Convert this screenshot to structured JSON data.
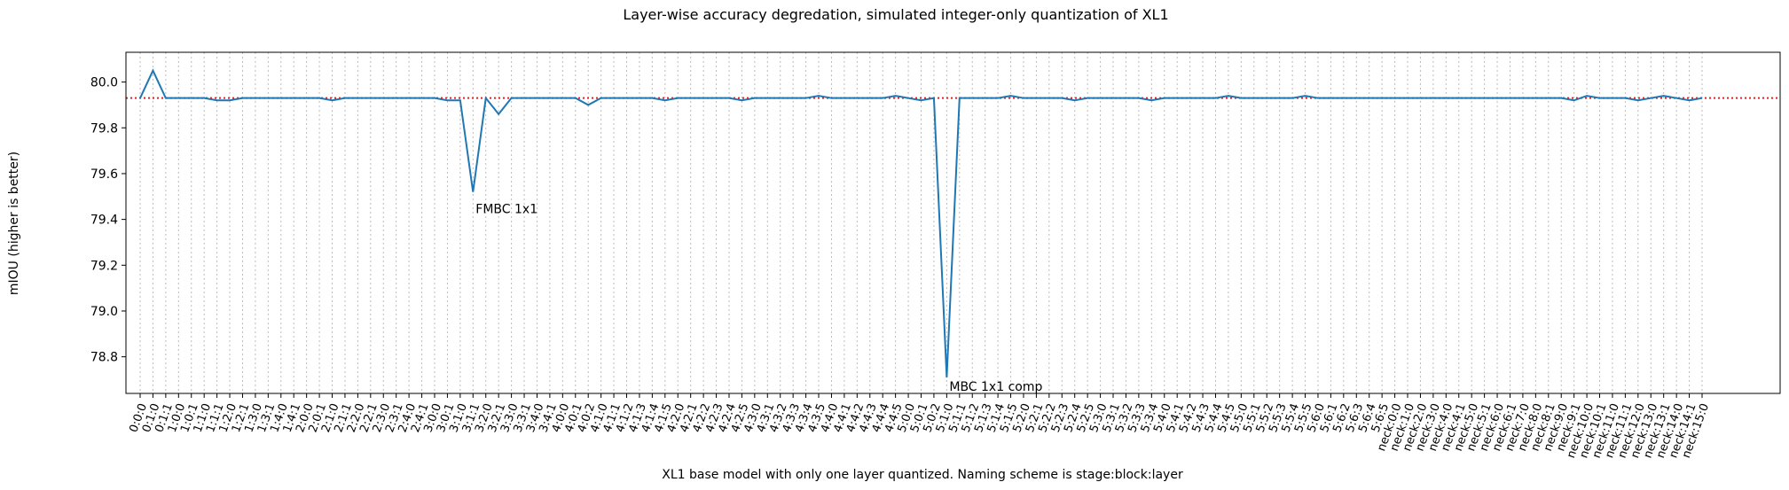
{
  "chart_data": {
    "type": "line",
    "title": "Layer-wise accuracy degredation, simulated integer-only quantization of XL1",
    "xlabel": "XL1 base model with only one layer quantized. Naming scheme is stage:block:layer",
    "ylabel": "mIOU (higher is better)",
    "categories": [
      "0:0:0",
      "0:1:0",
      "0:1:1",
      "1:0:0",
      "1:0:1",
      "1:1:0",
      "1:1:1",
      "1:2:0",
      "1:2:1",
      "1:3:0",
      "1:3:1",
      "1:4:0",
      "1:4:1",
      "2:0:0",
      "2:0:1",
      "2:1:0",
      "2:1:1",
      "2:2:0",
      "2:2:1",
      "2:3:0",
      "2:3:1",
      "2:4:0",
      "2:4:1",
      "3:0:0",
      "3:0:1",
      "3:1:0",
      "3:1:1",
      "3:2:0",
      "3:2:1",
      "3:3:0",
      "3:3:1",
      "3:4:0",
      "3:4:1",
      "4:0:0",
      "4:0:1",
      "4:0:2",
      "4:1:0",
      "4:1:1",
      "4:1:2",
      "4:1:3",
      "4:1:4",
      "4:1:5",
      "4:2:0",
      "4:2:1",
      "4:2:2",
      "4:2:3",
      "4:2:4",
      "4:2:5",
      "4:3:0",
      "4:3:1",
      "4:3:2",
      "4:3:3",
      "4:3:4",
      "4:3:5",
      "4:4:0",
      "4:4:1",
      "4:4:2",
      "4:4:3",
      "4:4:4",
      "4:4:5",
      "5:0:0",
      "5:0:1",
      "5:0:2",
      "5:1:0",
      "5:1:1",
      "5:1:2",
      "5:1:3",
      "5:1:4",
      "5:1:5",
      "5:2:0",
      "5:2:1",
      "5:2:2",
      "5:2:3",
      "5:2:4",
      "5:2:5",
      "5:3:0",
      "5:3:1",
      "5:3:2",
      "5:3:3",
      "5:3:4",
      "5:4:0",
      "5:4:1",
      "5:4:2",
      "5:4:3",
      "5:4:4",
      "5:4:5",
      "5:5:0",
      "5:5:1",
      "5:5:2",
      "5:5:3",
      "5:5:4",
      "5:5:5",
      "5:6:0",
      "5:6:1",
      "5:6:2",
      "5:6:3",
      "5:6:4",
      "5:6:5",
      "neck:0:0",
      "neck:1:0",
      "neck:2:0",
      "neck:3:0",
      "neck:4:0",
      "neck:4:1",
      "neck:5:0",
      "neck:5:1",
      "neck:6:0",
      "neck:6:1",
      "neck:7:0",
      "neck:8:0",
      "neck:8:1",
      "neck:9:0",
      "neck:9:1",
      "neck:10:0",
      "neck:10:1",
      "neck:11:0",
      "neck:11:1",
      "neck:12:0",
      "neck:13:0",
      "neck:13:1",
      "neck:14:0",
      "neck:14:1",
      "neck:15:0"
    ],
    "series": [
      {
        "name": "mIOU",
        "color": "#1f77b4",
        "values": [
          79.93,
          80.05,
          79.93,
          79.93,
          79.93,
          79.93,
          79.92,
          79.92,
          79.93,
          79.93,
          79.93,
          79.93,
          79.93,
          79.93,
          79.93,
          79.92,
          79.93,
          79.93,
          79.93,
          79.93,
          79.93,
          79.93,
          79.93,
          79.93,
          79.92,
          79.92,
          79.52,
          79.93,
          79.86,
          79.93,
          79.93,
          79.93,
          79.93,
          79.93,
          79.93,
          79.9,
          79.93,
          79.93,
          79.93,
          79.93,
          79.93,
          79.92,
          79.93,
          79.93,
          79.93,
          79.93,
          79.93,
          79.92,
          79.93,
          79.93,
          79.93,
          79.93,
          79.93,
          79.94,
          79.93,
          79.93,
          79.93,
          79.93,
          79.93,
          79.94,
          79.93,
          79.92,
          79.93,
          78.71,
          79.93,
          79.93,
          79.93,
          79.93,
          79.94,
          79.93,
          79.93,
          79.93,
          79.93,
          79.92,
          79.93,
          79.93,
          79.93,
          79.93,
          79.93,
          79.92,
          79.93,
          79.93,
          79.93,
          79.93,
          79.93,
          79.94,
          79.93,
          79.93,
          79.93,
          79.93,
          79.93,
          79.94,
          79.93,
          79.93,
          79.93,
          79.93,
          79.93,
          79.93,
          79.93,
          79.93,
          79.93,
          79.93,
          79.93,
          79.93,
          79.93,
          79.93,
          79.93,
          79.93,
          79.93,
          79.93,
          79.93,
          79.93,
          79.92,
          79.94,
          79.93,
          79.93,
          79.93,
          79.92,
          79.93,
          79.94,
          79.93,
          79.92,
          79.93
        ]
      }
    ],
    "reference_line": {
      "value": 79.93,
      "color": "#d62728"
    },
    "annotations": [
      {
        "text": "FMBC 1x1",
        "x": "3:1:1"
      },
      {
        "text": "MBC 1x1 comp",
        "x": "5:1:0"
      }
    ],
    "ylim": [
      78.64,
      80.13
    ],
    "yticks": [
      {
        "value": 78.8,
        "label": "78.8"
      },
      {
        "value": 79.0,
        "label": "79.0"
      },
      {
        "value": 79.2,
        "label": "79.2"
      },
      {
        "value": 79.4,
        "label": "79.4"
      },
      {
        "value": 79.6,
        "label": "79.6"
      },
      {
        "value": 79.8,
        "label": "79.8"
      },
      {
        "value": 80.0,
        "label": "80.0"
      }
    ],
    "grid": true
  }
}
